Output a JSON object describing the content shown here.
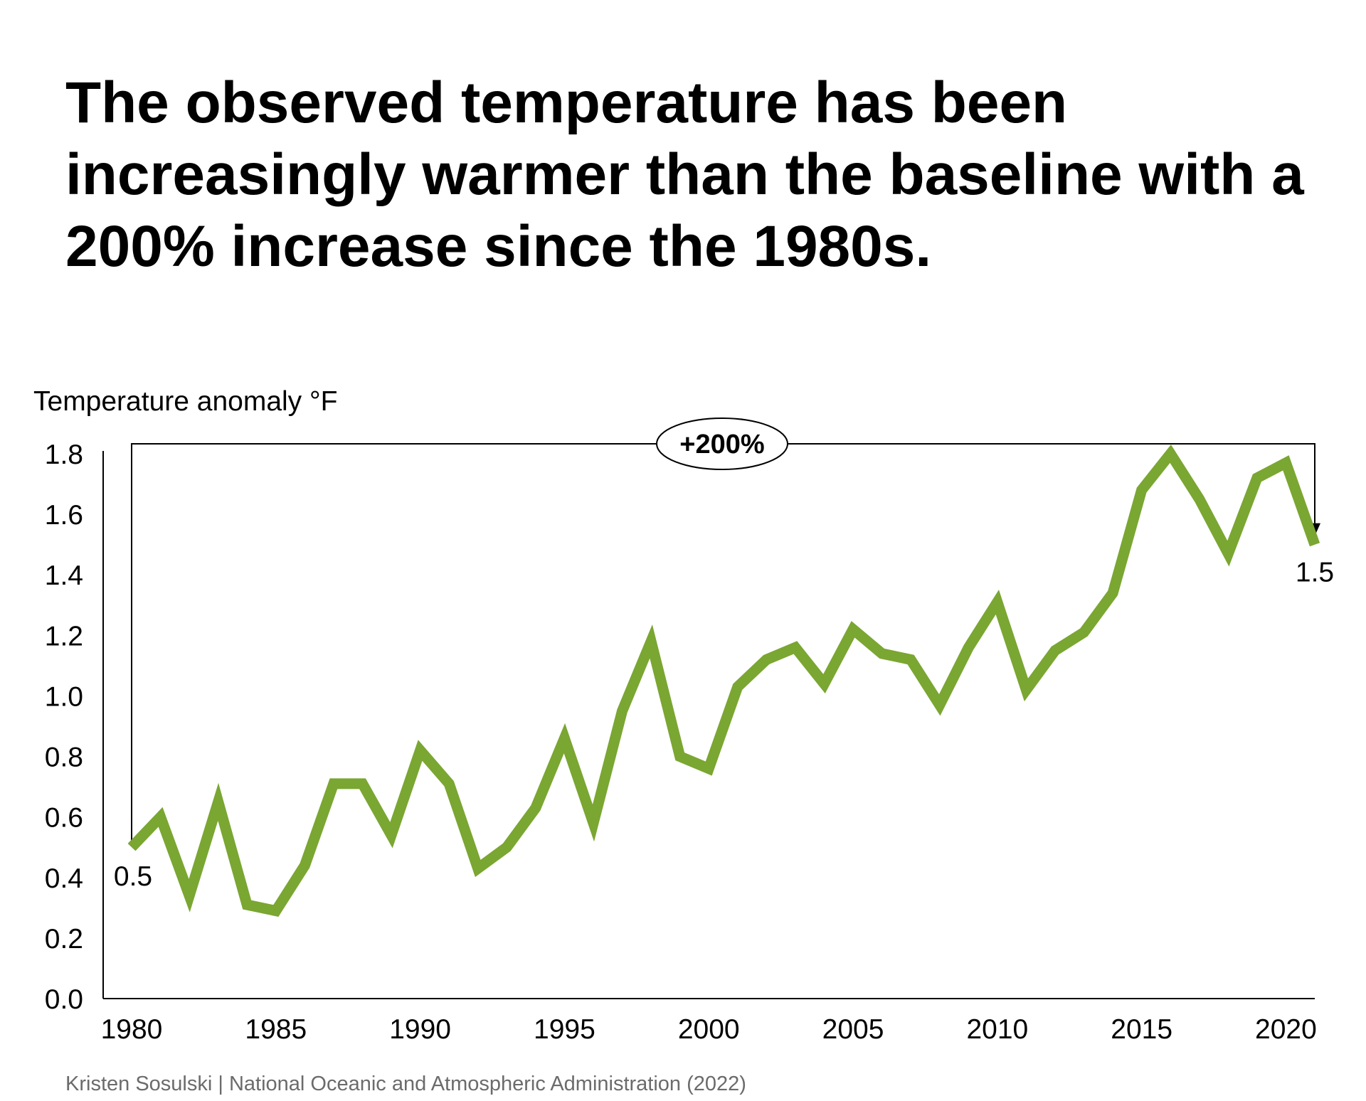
{
  "headline": "The observed temperature has been increasingly warmer than the baseline with a 200% increase since the 1980s.",
  "source": "Kristen Sosulski | National Oceanic and Atmospheric Administration (2022)",
  "colors": {
    "line": "#7aa632",
    "axis": "#000000",
    "text": "#000000",
    "source_text": "#6b6b6b"
  },
  "chart_data": {
    "type": "line",
    "title": "",
    "ylabel": "Temperature anomaly °F",
    "xlabel": "",
    "xlim": [
      1980,
      2021
    ],
    "ylim": [
      0,
      1.8
    ],
    "x_ticks": [
      "1980",
      "1985",
      "1990",
      "1995",
      "2000",
      "2005",
      "2010",
      "2015",
      "2020"
    ],
    "y_ticks": [
      "0.0",
      "0.2",
      "0.4",
      "0.6",
      "0.8",
      "1.0",
      "1.2",
      "1.4",
      "1.6",
      "1.8"
    ],
    "series": [
      {
        "name": "Temperature anomaly",
        "x": [
          1980,
          1981,
          1982,
          1983,
          1984,
          1985,
          1986,
          1987,
          1988,
          1989,
          1990,
          1991,
          1992,
          1993,
          1994,
          1995,
          1996,
          1997,
          1998,
          1999,
          2000,
          2001,
          2002,
          2003,
          2004,
          2005,
          2006,
          2007,
          2008,
          2009,
          2010,
          2011,
          2012,
          2013,
          2014,
          2015,
          2016,
          2017,
          2018,
          2019,
          2020,
          2021
        ],
        "values": [
          0.5,
          0.6,
          0.34,
          0.65,
          0.31,
          0.29,
          0.44,
          0.71,
          0.71,
          0.54,
          0.82,
          0.71,
          0.43,
          0.5,
          0.63,
          0.86,
          0.58,
          0.95,
          1.18,
          0.8,
          0.76,
          1.03,
          1.12,
          1.16,
          1.04,
          1.22,
          1.14,
          1.12,
          0.97,
          1.16,
          1.31,
          1.02,
          1.15,
          1.21,
          1.34,
          1.68,
          1.8,
          1.65,
          1.47,
          1.72,
          1.77,
          1.5
        ]
      }
    ],
    "annotations": {
      "start_label": "0.5",
      "end_label": "1.5",
      "change_label": "+200%"
    },
    "grid": false,
    "legend": "none"
  }
}
